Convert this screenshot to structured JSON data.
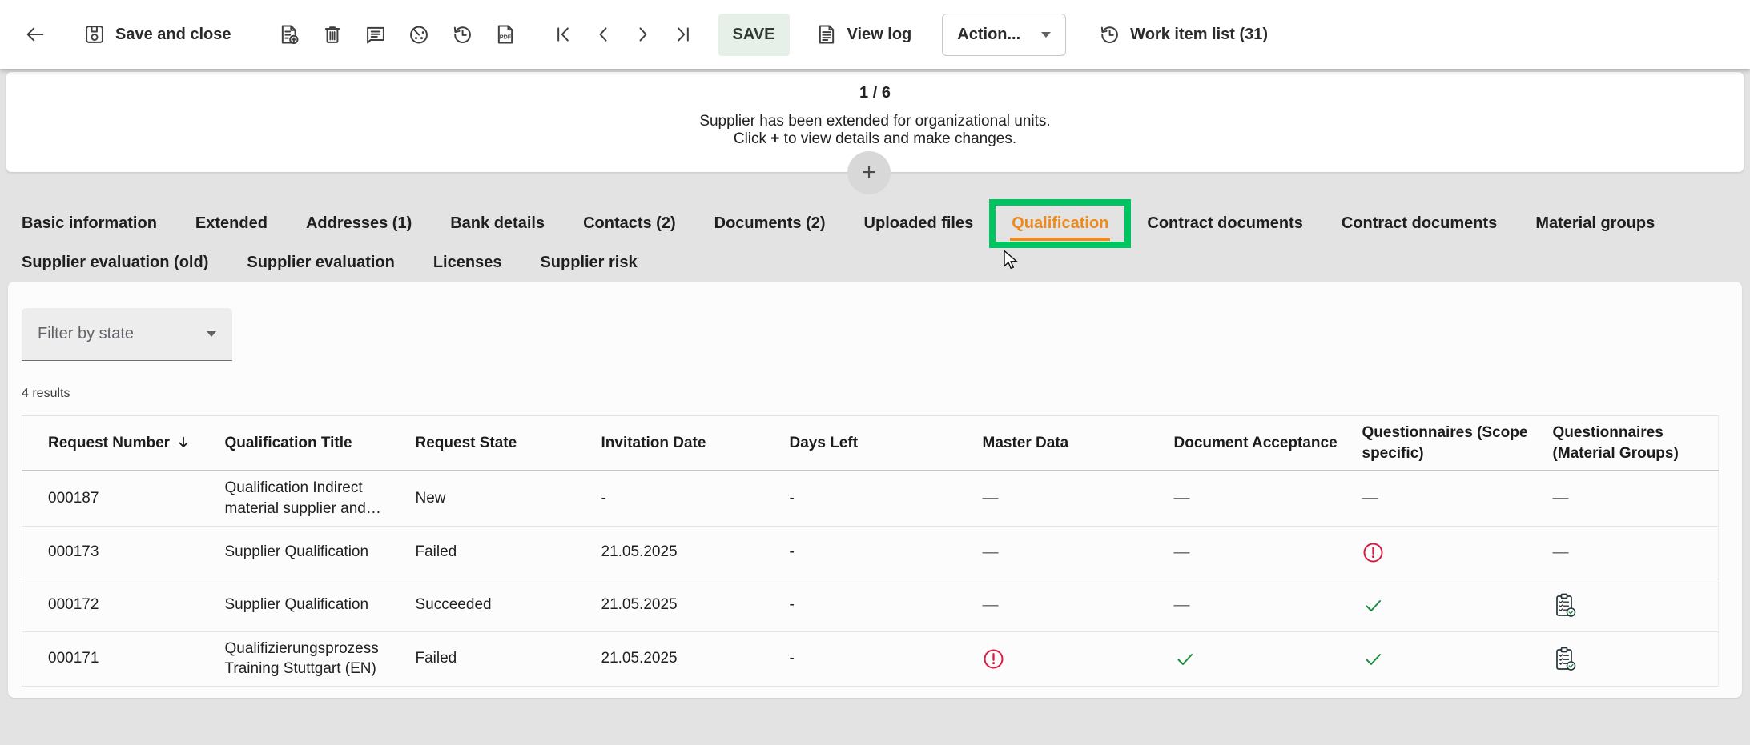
{
  "toolbar": {
    "save_and_close": "Save and close",
    "save_button": "SAVE",
    "view_log": "View log",
    "action_dropdown": "Action...",
    "work_item_list": "Work item list (31)"
  },
  "banner": {
    "pager": "1 / 6",
    "message_line1": "Supplier has been extended for organizational units.",
    "message_line2_pre": "Click ",
    "message_line2_plus": "+",
    "message_line2_post": " to view details and make changes.",
    "expand_button": "+"
  },
  "tabs": {
    "row1": [
      {
        "label": "Basic information",
        "active": false
      },
      {
        "label": "Extended",
        "active": false
      },
      {
        "label": "Addresses (1)",
        "active": false
      },
      {
        "label": "Bank details",
        "active": false
      },
      {
        "label": "Contacts (2)",
        "active": false
      },
      {
        "label": "Documents (2)",
        "active": false
      },
      {
        "label": "Uploaded files",
        "active": false
      },
      {
        "label": "Qualification",
        "active": true,
        "highlighted": true
      },
      {
        "label": "Contract documents",
        "active": false
      },
      {
        "label": "Contract documents",
        "active": false
      },
      {
        "label": "Material groups",
        "active": false
      }
    ],
    "row2": [
      {
        "label": "Supplier evaluation (old)",
        "active": false
      },
      {
        "label": "Supplier evaluation",
        "active": false
      },
      {
        "label": "Licenses",
        "active": false
      },
      {
        "label": "Supplier risk",
        "active": false
      }
    ]
  },
  "filter": {
    "label": "Filter by state"
  },
  "results_summary": "4 results",
  "table": {
    "columns": [
      {
        "label": "Request Number",
        "sort": "desc"
      },
      {
        "label": "Qualification Title"
      },
      {
        "label": "Request State"
      },
      {
        "label": "Invitation Date"
      },
      {
        "label": "Days Left"
      },
      {
        "label": "Master Data"
      },
      {
        "label": "Document Acceptance"
      },
      {
        "label": "Questionnaires (Scope specific)"
      },
      {
        "label": "Questionnaires (Material Groups)"
      }
    ],
    "rows": [
      {
        "request_number": "000187",
        "qualification_title": "Qualification Indirect material supplier and…",
        "request_state": "New",
        "invitation_date": "-",
        "days_left": "-",
        "master_data": "none",
        "document_acceptance": "none",
        "questionnaires_scope": "none",
        "questionnaires_material": "none"
      },
      {
        "request_number": "000173",
        "qualification_title": "Supplier Qualification",
        "request_state": "Failed",
        "invitation_date": "21.05.2025",
        "days_left": "-",
        "master_data": "none",
        "document_acceptance": "none",
        "questionnaires_scope": "error",
        "questionnaires_material": "none"
      },
      {
        "request_number": "000172",
        "qualification_title": "Supplier Qualification",
        "request_state": "Succeeded",
        "invitation_date": "21.05.2025",
        "days_left": "-",
        "master_data": "none",
        "document_acceptance": "none",
        "questionnaires_scope": "check",
        "questionnaires_material": "questionnaire"
      },
      {
        "request_number": "000171",
        "qualification_title": "Qualifizierungsprozess Training Stuttgart (EN)",
        "request_state": "Failed",
        "invitation_date": "21.05.2025",
        "days_left": "-",
        "master_data": "error",
        "document_acceptance": "check",
        "questionnaires_scope": "check",
        "questionnaires_material": "questionnaire"
      }
    ]
  },
  "colors": {
    "accent_orange": "#EE8A1D",
    "highlight_green": "#00C45F",
    "error_red": "#D81B43",
    "success_green": "#1E8E3E",
    "save_button_bg": "#E6EFE8"
  }
}
